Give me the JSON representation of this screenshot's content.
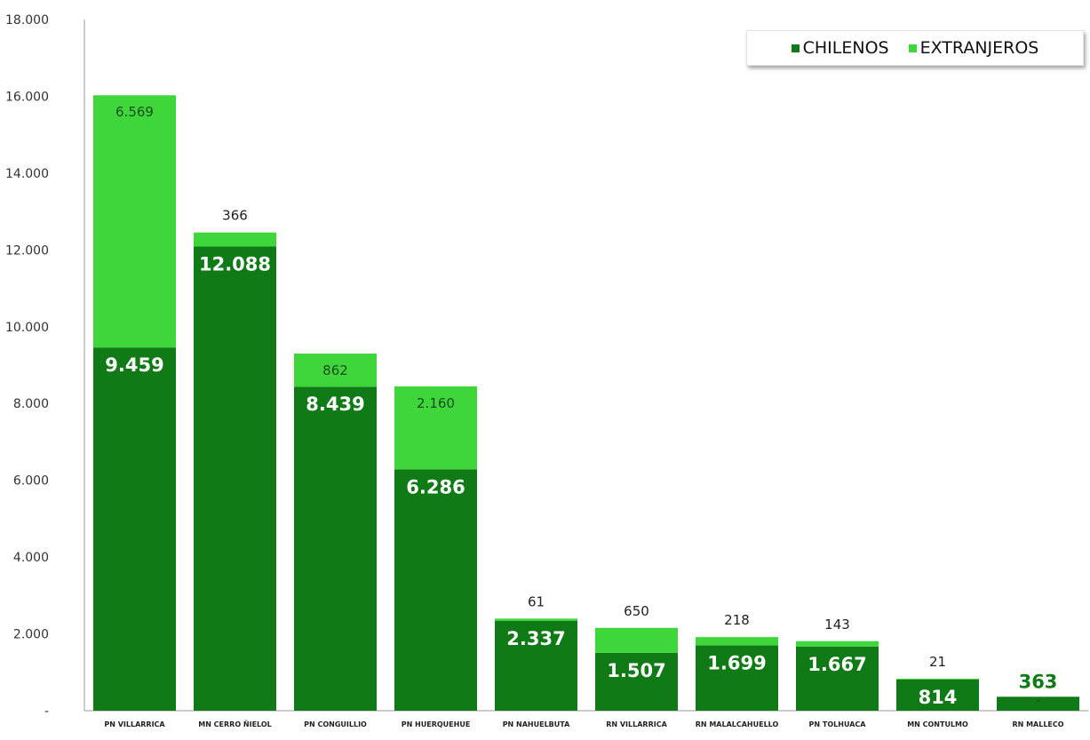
{
  "colors": {
    "chilenos": "#0f7a16",
    "extranjeros": "#3fd63b",
    "axis": "#999999",
    "label_dark": "#ffffff",
    "label_light": "#1b4d1b",
    "label_outside": "#222222"
  },
  "chart_data": {
    "type": "bar",
    "stacked": true,
    "categories": [
      "PN VILLARRICA",
      "MN CERRO ÑIELOL",
      "PN CONGUILLIO",
      "PN HUERQUEHUE",
      "PN NAHUELBUTA",
      "RN VILLARRICA",
      "RN MALALCAHUELLO",
      "PN TOLHUACA",
      "MN CONTULMO",
      "RN MALLECO"
    ],
    "series": [
      {
        "name": "CHILENOS",
        "values": [
          9459,
          12088,
          8439,
          6286,
          2337,
          1507,
          1699,
          1667,
          814,
          363
        ],
        "labels": [
          "9.459",
          "12.088",
          "8.439",
          "6.286",
          "2.337",
          "1.507",
          "1.699",
          "1.667",
          "814",
          "363"
        ]
      },
      {
        "name": "EXTRANJEROS",
        "values": [
          6569,
          366,
          862,
          2160,
          61,
          650,
          218,
          143,
          21,
          0
        ],
        "labels": [
          "6.569",
          "366",
          "862",
          "2.160",
          "61",
          "650",
          "218",
          "143",
          "21",
          "-"
        ]
      }
    ],
    "yticks": [
      "-",
      "2.000",
      "4.000",
      "6.000",
      "8.000",
      "10.000",
      "12.000",
      "14.000",
      "16.000",
      "18.000"
    ],
    "ylim": [
      0,
      18000
    ],
    "grid": false,
    "legend": "top-right",
    "title": "",
    "xlabel": "",
    "ylabel": ""
  }
}
